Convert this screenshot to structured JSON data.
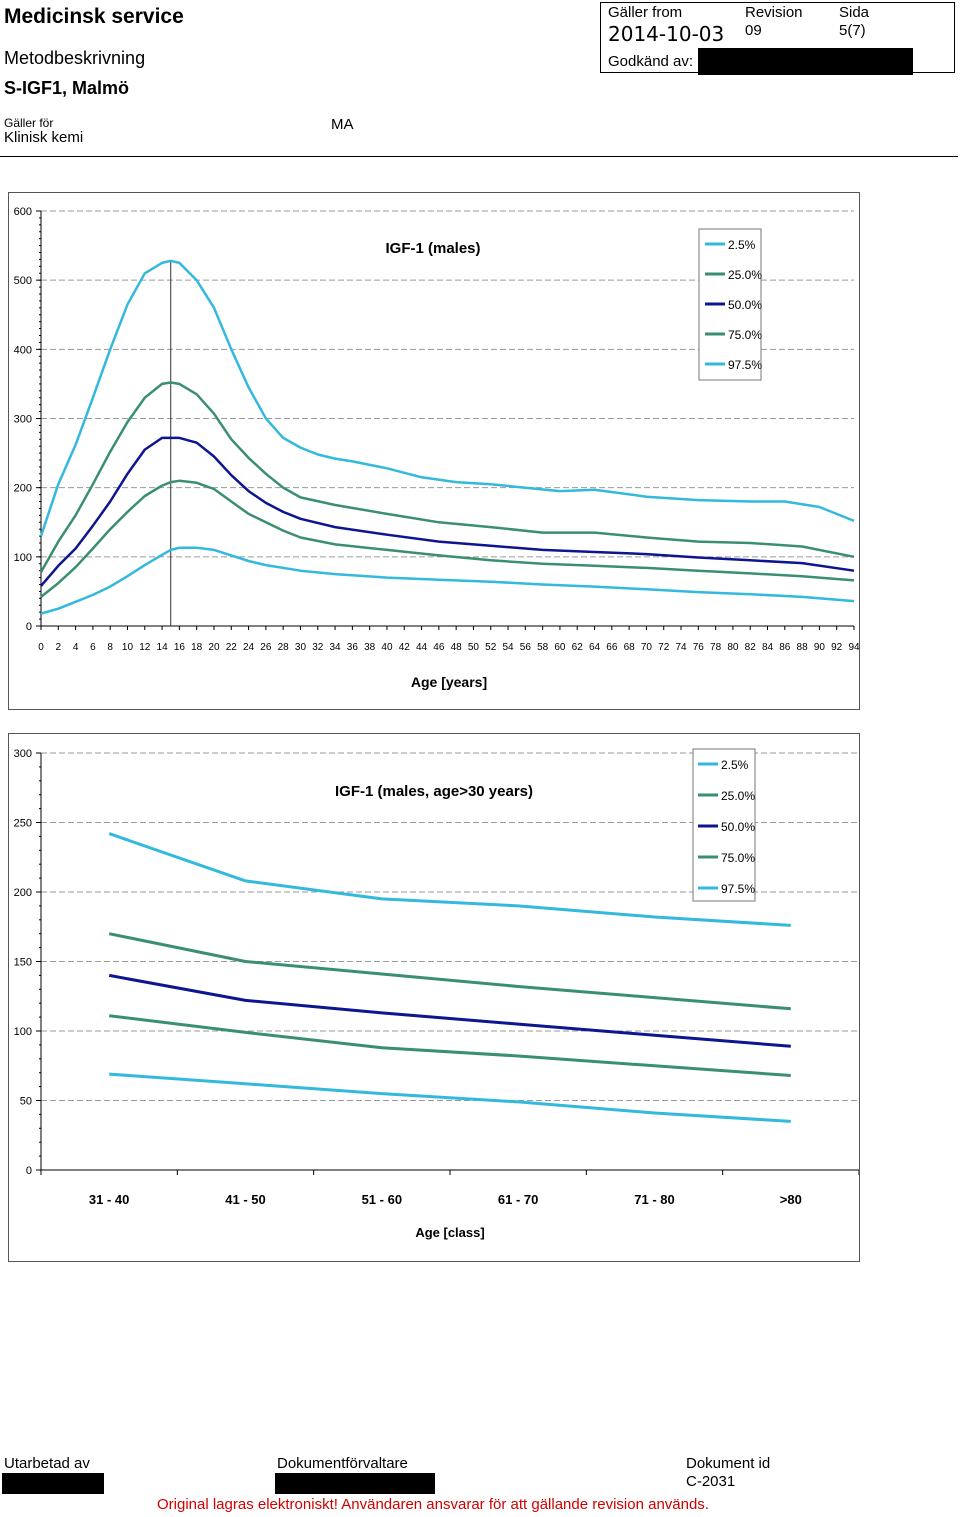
{
  "header": {
    "title": "Medicinsk service",
    "subtitle": "Metodbeskrivning",
    "document_name": "S-IGF1, Malmö",
    "applies_to_label": "Gäller för",
    "applies_to_value": "Klinisk kemi",
    "area": "MA",
    "valid_from_label": "Gäller from",
    "valid_from": "2014-10-03",
    "revision_label": "Revision",
    "revision": "09",
    "page_label": "Sida",
    "page": "5(7)",
    "approved_by_label": "Godkänd av:"
  },
  "footer": {
    "prepared_by_label": "Utarbetad av",
    "document_manager_label": "Dokumentförvaltare",
    "document_id_label": "Dokument id",
    "document_id": "C-2031",
    "note": "Original lagras elektroniskt! Användaren ansvarar för att gällande revision används."
  },
  "colors": {
    "p2_5": "#33b9dd",
    "p25": "#3a8f6e",
    "p50": "#0d1590",
    "p75": "#3a8f6e",
    "p97_5": "#33b9dd"
  },
  "chart_data": [
    {
      "type": "line",
      "title": "IGF-1 (males)",
      "xlabel": "Age [years]",
      "ylabel": "",
      "xlim": [
        0,
        94
      ],
      "ylim": [
        0,
        600
      ],
      "x_ticks": [
        "0",
        "2",
        "4",
        "6",
        "8",
        "10",
        "12",
        "14",
        "16",
        "18",
        "20",
        "22",
        "24",
        "26",
        "28",
        "30",
        "32",
        "34",
        "36",
        "38",
        "40",
        "42",
        "44",
        "46",
        "48",
        "50",
        "52",
        "54",
        "56",
        "58",
        "60",
        "62",
        "64",
        "66",
        "68",
        "70",
        "72",
        "74",
        "76",
        "78",
        "80",
        "82",
        "84",
        "86",
        "88",
        "90",
        "92",
        "94"
      ],
      "y_ticks": [
        "0",
        "100",
        "200",
        "300",
        "400",
        "500",
        "600"
      ],
      "vertical_marker_x": 15,
      "grid": true,
      "legend_position": "top-right",
      "legend": [
        "2.5%",
        "25.0%",
        "50.0%",
        "75.0%",
        "97.5%"
      ],
      "series": [
        {
          "name": "2.5%",
          "color_key": "p2_5",
          "x": [
            0,
            2,
            4,
            6,
            8,
            10,
            12,
            14,
            15,
            16,
            18,
            20,
            22,
            24,
            26,
            28,
            30,
            34,
            40,
            46,
            52,
            58,
            64,
            70,
            76,
            82,
            88,
            94
          ],
          "values": [
            18,
            25,
            35,
            45,
            57,
            72,
            88,
            103,
            110,
            113,
            113,
            110,
            102,
            94,
            88,
            84,
            80,
            75,
            70,
            67,
            64,
            60,
            57,
            53,
            49,
            46,
            42,
            36
          ]
        },
        {
          "name": "25.0%",
          "color_key": "p25",
          "x": [
            0,
            2,
            4,
            6,
            8,
            10,
            12,
            14,
            15,
            16,
            18,
            20,
            22,
            24,
            26,
            28,
            30,
            34,
            40,
            46,
            52,
            58,
            64,
            70,
            76,
            82,
            88,
            94
          ],
          "values": [
            42,
            62,
            85,
            112,
            140,
            165,
            188,
            203,
            208,
            210,
            207,
            198,
            180,
            162,
            150,
            138,
            128,
            118,
            110,
            102,
            95,
            90,
            87,
            84,
            80,
            76,
            72,
            66
          ]
        },
        {
          "name": "50.0%",
          "color_key": "p50",
          "x": [
            0,
            2,
            4,
            6,
            8,
            10,
            12,
            14,
            15,
            16,
            18,
            20,
            22,
            24,
            26,
            28,
            30,
            34,
            40,
            46,
            52,
            58,
            64,
            70,
            76,
            82,
            88,
            94
          ],
          "values": [
            58,
            87,
            112,
            145,
            180,
            220,
            255,
            272,
            272,
            272,
            265,
            245,
            218,
            195,
            178,
            165,
            155,
            143,
            132,
            122,
            116,
            110,
            107,
            104,
            99,
            95,
            91,
            80
          ]
        },
        {
          "name": "75.0%",
          "color_key": "p75",
          "x": [
            0,
            2,
            4,
            6,
            8,
            10,
            12,
            14,
            15,
            16,
            18,
            20,
            22,
            24,
            26,
            28,
            30,
            34,
            40,
            46,
            52,
            58,
            64,
            70,
            76,
            82,
            88,
            94
          ],
          "values": [
            78,
            122,
            160,
            205,
            252,
            295,
            330,
            350,
            352,
            350,
            335,
            307,
            270,
            243,
            220,
            200,
            186,
            175,
            162,
            150,
            143,
            135,
            135,
            128,
            122,
            120,
            115,
            100
          ]
        },
        {
          "name": "97.5%",
          "color_key": "p97_5",
          "x": [
            0,
            2,
            4,
            6,
            8,
            10,
            12,
            14,
            15,
            16,
            18,
            20,
            22,
            24,
            26,
            28,
            30,
            32,
            34,
            36,
            40,
            44,
            48,
            52,
            56,
            60,
            64,
            70,
            76,
            82,
            86,
            90,
            94
          ],
          "values": [
            130,
            205,
            262,
            330,
            400,
            465,
            510,
            525,
            528,
            525,
            500,
            460,
            400,
            345,
            300,
            272,
            258,
            248,
            242,
            238,
            228,
            215,
            208,
            205,
            200,
            195,
            197,
            187,
            182,
            180,
            180,
            172,
            152
          ]
        }
      ]
    },
    {
      "type": "line",
      "title": "IGF-1 (males, age>30 years)",
      "xlabel": "Age [class]",
      "ylabel": "",
      "categories": [
        "31 - 40",
        "41 - 50",
        "51 - 60",
        "61 - 70",
        "71 - 80",
        ">80"
      ],
      "ylim": [
        0,
        300
      ],
      "y_ticks": [
        "0",
        "50",
        "100",
        "150",
        "200",
        "250",
        "300"
      ],
      "grid": true,
      "legend_position": "top-right",
      "legend": [
        "2.5%",
        "25.0%",
        "50.0%",
        "75.0%",
        "97.5%"
      ],
      "series": [
        {
          "name": "2.5%",
          "color_key": "p2_5",
          "values": [
            69,
            62,
            55,
            49,
            41,
            35
          ]
        },
        {
          "name": "25.0%",
          "color_key": "p25",
          "values": [
            111,
            99,
            88,
            82,
            75,
            68
          ]
        },
        {
          "name": "50.0%",
          "color_key": "p50",
          "values": [
            140,
            122,
            113,
            105,
            97,
            89
          ]
        },
        {
          "name": "75.0%",
          "color_key": "p75",
          "values": [
            170,
            150,
            141,
            132,
            124,
            116
          ]
        },
        {
          "name": "97.5%",
          "color_key": "p97_5",
          "values": [
            242,
            208,
            195,
            190,
            182,
            176
          ]
        }
      ]
    }
  ]
}
